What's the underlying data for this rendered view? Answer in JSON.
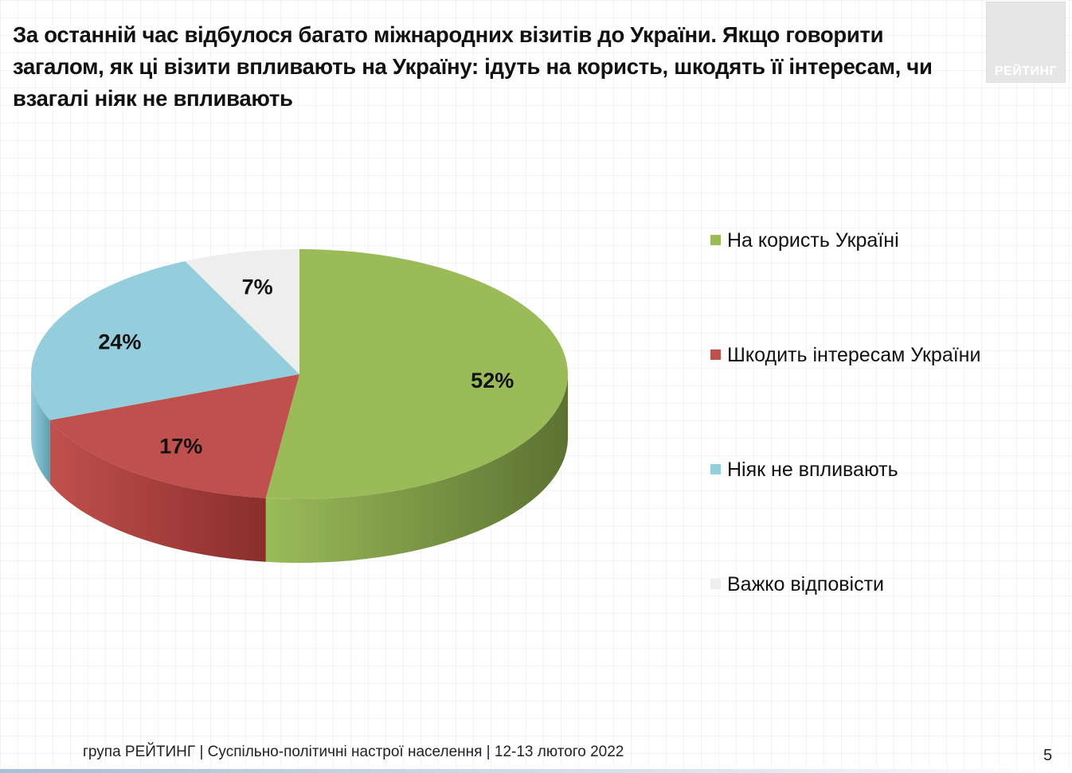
{
  "title": "За останній час відбулося багато міжнародних візитів до України. Якщо говорити загалом, як ці візити впливають на Україну:  ідуть на користь, шкодять її інтересам, чи взагалі ніяк не впливають",
  "logo": {
    "text": "РЕЙТИНГ"
  },
  "footer": {
    "text": "група РЕЙТИНГ | Суспільно-політичні настрої населення | 12-13 лютого 2022",
    "page_number": "5"
  },
  "chart_data": {
    "type": "pie",
    "style": "3d",
    "title": "",
    "legend_position": "right",
    "categories": [
      "На користь Україні",
      "Шкодить інтересам України",
      "Ніяк не впливають",
      "Важко відповісти"
    ],
    "values": [
      52,
      17,
      24,
      7
    ],
    "labels": [
      "52%",
      "17%",
      "24%",
      "7%"
    ],
    "colors": [
      "#9bbb59",
      "#c0504d",
      "#94cddc",
      "#eeeeee"
    ],
    "side_colors": [
      "#5c7232",
      "#8a2e2c",
      "#5f9fb0",
      "#b8b8b8"
    ]
  }
}
